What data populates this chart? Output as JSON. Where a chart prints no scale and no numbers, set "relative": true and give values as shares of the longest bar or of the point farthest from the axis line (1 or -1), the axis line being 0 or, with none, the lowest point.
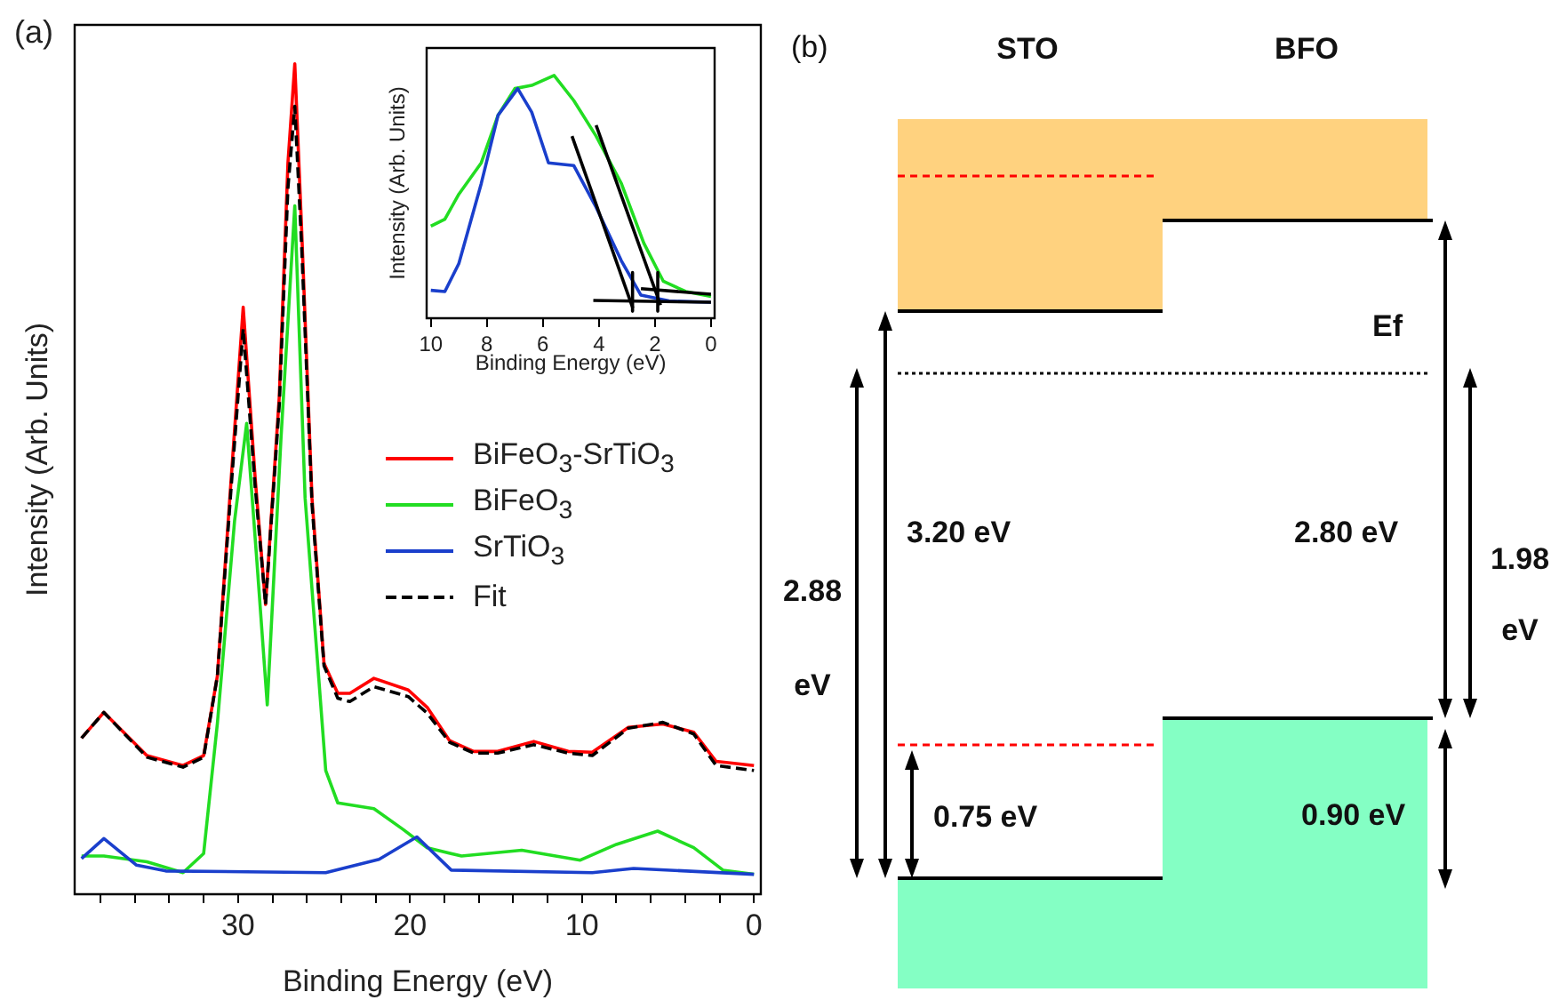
{
  "chart_data": [
    {
      "type": "line",
      "relative": true,
      "xlabel": "Binding Energy (eV)",
      "ylabel": "Intensity (Arb. Units)",
      "annotations": [
        "(a)"
      ],
      "legend": "right",
      "grid": false,
      "xlim": [
        39.5,
        -0.4
      ],
      "xticks": [
        0,
        {
          "value": 2,
          "label": null
        },
        {
          "value": 4,
          "label": null
        },
        {
          "value": 6,
          "label": null
        },
        {
          "value": 8,
          "label": null
        },
        10,
        {
          "value": 12,
          "label": null
        },
        {
          "value": 14,
          "label": null
        },
        {
          "value": 16,
          "label": null
        },
        {
          "value": 18,
          "label": null
        },
        20,
        {
          "value": 22,
          "label": null
        },
        {
          "value": 24,
          "label": null
        },
        {
          "value": 26,
          "label": null
        },
        {
          "value": 28,
          "label": null
        },
        30,
        {
          "value": 32,
          "label": null
        },
        {
          "value": 34,
          "label": null
        },
        {
          "value": 36,
          "label": null
        },
        {
          "value": 38,
          "label": null
        }
      ],
      "series": [
        {
          "name": "BiFeO$_{3}$-SrTiO$_{3}$",
          "color": "#ff0000",
          "x": [
            39.1,
            37.8,
            35.3,
            33.2,
            32.0,
            31.2,
            30.4,
            29.7,
            29.0,
            28.4,
            27.6,
            27.1,
            26.7,
            26.3,
            25.7,
            25.0,
            24.2,
            23.5,
            22.1,
            20.1,
            19.0,
            17.7,
            16.3,
            14.9,
            12.8,
            10.8,
            9.4,
            7.3,
            5.3,
            3.5,
            2.2,
            0
          ],
          "values": [
            0.188,
            0.219,
            0.167,
            0.155,
            0.167,
            0.263,
            0.5,
            0.707,
            0.5,
            0.349,
            0.6,
            0.88,
            1.0,
            0.8,
            0.477,
            0.278,
            0.242,
            0.242,
            0.26,
            0.246,
            0.225,
            0.185,
            0.172,
            0.172,
            0.184,
            0.172,
            0.171,
            0.201,
            0.205,
            0.195,
            0.16,
            0.155
          ]
        },
        {
          "name": "BiFeO$_{3}$",
          "color": "#22dd22",
          "x": [
            39.1,
            37.8,
            35.3,
            33.2,
            32.0,
            31.2,
            30.2,
            29.5,
            28.9,
            28.3,
            27.5,
            26.7,
            26.1,
            24.9,
            24.2,
            22.1,
            20.4,
            19.0,
            17.0,
            13.5,
            10.1,
            8.0,
            5.6,
            3.5,
            1.8,
            0
          ],
          "values": [
            0.046,
            0.046,
            0.039,
            0.026,
            0.049,
            0.206,
            0.45,
            0.567,
            0.4,
            0.228,
            0.55,
            0.829,
            0.477,
            0.149,
            0.11,
            0.103,
            0.078,
            0.056,
            0.046,
            0.053,
            0.041,
            0.06,
            0.076,
            0.056,
            0.029,
            0.024
          ]
        },
        {
          "name": "SrTiO$_{3}$",
          "color": "#1a3fcc",
          "x": [
            39.1,
            37.8,
            35.9,
            34.2,
            24.9,
            21.8,
            19.6,
            17.6,
            9.4,
            7.0,
            0
          ],
          "values": [
            0.043,
            0.067,
            0.035,
            0.028,
            0.026,
            0.042,
            0.069,
            0.029,
            0.026,
            0.031,
            0.024
          ]
        },
        {
          "name": "Fit",
          "color": "#000000",
          "line_style": "dashed",
          "x": [
            39.1,
            37.8,
            35.3,
            33.2,
            32.0,
            31.2,
            30.4,
            29.7,
            29.0,
            28.4,
            27.6,
            27.1,
            26.7,
            26.3,
            25.7,
            25.0,
            24.2,
            23.5,
            22.1,
            20.1,
            19.0,
            17.7,
            16.3,
            14.9,
            12.8,
            10.8,
            9.4,
            7.3,
            5.3,
            3.5,
            2.2,
            0
          ],
          "values": [
            0.188,
            0.219,
            0.165,
            0.153,
            0.165,
            0.263,
            0.49,
            0.681,
            0.49,
            0.349,
            0.59,
            0.85,
            0.949,
            0.78,
            0.47,
            0.275,
            0.236,
            0.232,
            0.25,
            0.238,
            0.218,
            0.183,
            0.17,
            0.17,
            0.18,
            0.17,
            0.167,
            0.2,
            0.207,
            0.193,
            0.155,
            0.149
          ]
        }
      ]
    },
    {
      "type": "line",
      "relative": true,
      "xlabel": "Binding Energy (eV)",
      "ylabel": "Intensity (Arb. Units)",
      "grid": false,
      "xlim": [
        10.15,
        -0.13
      ],
      "xticks": [
        0,
        2,
        4,
        6,
        8,
        10
      ],
      "series": [
        {
          "color": "#22dd22",
          "x": [
            10.0,
            9.5,
            9.0,
            8.2,
            7.6,
            7.0,
            6.4,
            5.6,
            4.9,
            4.1,
            3.2,
            2.4,
            1.7,
            0.9,
            0
          ],
          "values": [
            0.379,
            0.408,
            0.511,
            0.64,
            0.836,
            0.946,
            0.959,
            1.0,
            0.897,
            0.75,
            0.555,
            0.31,
            0.152,
            0.11,
            0.09
          ]
        },
        {
          "color": "#1a3fcc",
          "x": [
            10.0,
            9.5,
            9.0,
            8.2,
            7.6,
            6.9,
            6.4,
            5.8,
            4.9,
            4.1,
            3.2,
            2.5,
            1.5,
            0
          ],
          "values": [
            0.115,
            0.11,
            0.225,
            0.555,
            0.836,
            0.946,
            0.849,
            0.64,
            0.629,
            0.457,
            0.237,
            0.095,
            0.071,
            0.066
          ]
        },
        {
          "color": "#000000",
          "x": [
            4.96,
            2.79
          ],
          "values": [
            0.75,
            0.042
          ]
        },
        {
          "color": "#000000",
          "x": [
            4.1,
            1.8
          ],
          "values": [
            0.795,
            0.054
          ]
        },
        {
          "color": "#000000",
          "x": [
            4.2,
            0
          ],
          "values": [
            0.073,
            0.066
          ]
        },
        {
          "color": "#000000",
          "x": [
            2.5,
            0
          ],
          "values": [
            0.122,
            0.099
          ]
        },
        {
          "color": "#000000",
          "x": [
            2.8,
            2.8
          ],
          "values": [
            0.188,
            0.029
          ]
        },
        {
          "color": "#000000",
          "x": [
            1.9,
            1.9
          ],
          "values": [
            0.188,
            0.029
          ]
        }
      ]
    },
    {
      "type": "other",
      "annotations": [
        "(b)",
        "STO",
        "BFO",
        "Ef",
        "2.88 eV",
        "3.20 eV",
        "2.80 eV",
        "1.98 eV",
        "0.75 eV",
        "0.90 eV"
      ]
    }
  ]
}
